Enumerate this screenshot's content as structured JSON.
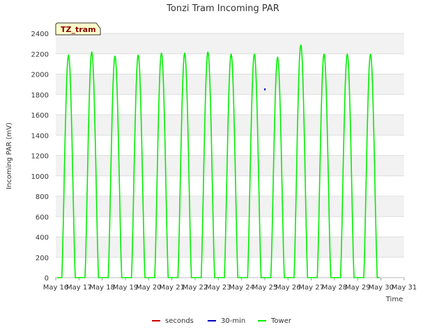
{
  "chart_data": {
    "type": "line",
    "title": "Tonzi Tram Incoming PAR",
    "xlabel": "Time",
    "ylabel": "Incoming PAR (mV)",
    "ylim": [
      0,
      2400
    ],
    "xlim": [
      16,
      31
    ],
    "grid": true,
    "legend_placement": "bottom",
    "tag_label": "TZ_tram",
    "yticks": [
      "0",
      "200",
      "400",
      "600",
      "800",
      "1000",
      "1200",
      "1400",
      "1600",
      "1800",
      "2000",
      "2200",
      "2400"
    ],
    "xticks": [
      "May 16",
      "May 17",
      "May 18",
      "May 19",
      "May 20",
      "May 21",
      "May 22",
      "May 23",
      "May 24",
      "May 25",
      "May 26",
      "May 27",
      "May 28",
      "May 29",
      "May 30",
      "May 31"
    ],
    "series": [
      {
        "name": "seconds",
        "color": "#cc0000",
        "x": [],
        "y": []
      },
      {
        "name": "30-min",
        "color": "#0000bb",
        "x": [
          25.0,
          25.01
        ],
        "y": [
          1840,
          1860
        ]
      },
      {
        "name": "Tower",
        "color": "#00ee00",
        "daily_peaks": [
          {
            "day": "May 16",
            "peak": 2190
          },
          {
            "day": "May 17",
            "peak": 2220
          },
          {
            "day": "May 18",
            "peak": 2180
          },
          {
            "day": "May 19",
            "peak": 2190
          },
          {
            "day": "May 20",
            "peak": 2210
          },
          {
            "day": "May 21",
            "peak": 2210
          },
          {
            "day": "May 22",
            "peak": 2220
          },
          {
            "day": "May 23",
            "peak": 2200
          },
          {
            "day": "May 24",
            "peak": 2200
          },
          {
            "day": "May 25",
            "peak": 2170
          },
          {
            "day": "May 26",
            "peak": 2290
          },
          {
            "day": "May 27",
            "peak": 2200
          },
          {
            "day": "May 28",
            "peak": 2200
          },
          {
            "day": "May 29",
            "peak": 2200
          }
        ]
      }
    ]
  }
}
